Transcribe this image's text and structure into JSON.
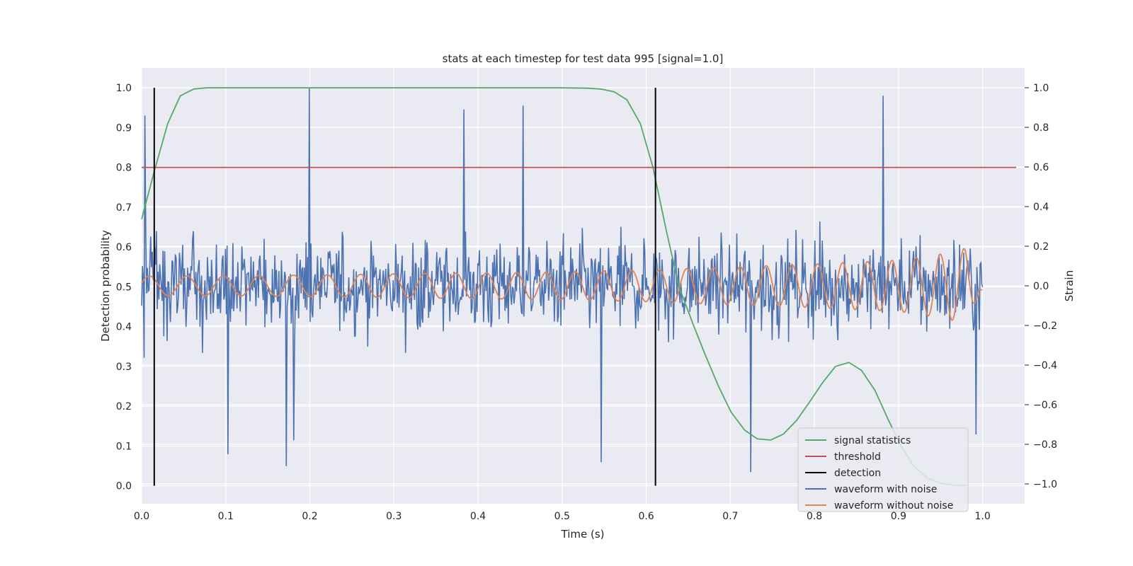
{
  "chart_data": {
    "type": "line",
    "title": "stats at each timestep for test data 995 [signal=1.0]",
    "xlabel": "Time (s)",
    "ylabel_left": "Detection probability",
    "ylabel_right": "Strain",
    "xlim": [
      0.0,
      1.05
    ],
    "ylim_left": [
      -0.045,
      1.05
    ],
    "ylim_right": [
      -1.1,
      1.1
    ],
    "x_ticks": [
      "0.0",
      "0.1",
      "0.2",
      "0.3",
      "0.4",
      "0.5",
      "0.6",
      "0.7",
      "0.8",
      "0.9",
      "1.0"
    ],
    "y_ticks_left": [
      "0.0",
      "0.1",
      "0.2",
      "0.3",
      "0.4",
      "0.5",
      "0.6",
      "0.7",
      "0.8",
      "0.9",
      "1.0"
    ],
    "y_ticks_right": [
      "−1.0",
      "−0.8",
      "−0.6",
      "−0.4",
      "−0.2",
      "0.0",
      "0.2",
      "0.4",
      "0.6",
      "0.8",
      "1.0"
    ],
    "grid": true,
    "legend_position": "lower-right",
    "colors": {
      "plot_background": "#eaeaf2",
      "grid": "#ffffff",
      "signal_statistics": "#55a868",
      "threshold": "#c44e52",
      "detection": "#000000",
      "waveform_with_noise": "#4c72b0",
      "waveform_without_noise": "#dd8452"
    },
    "series": [
      {
        "name": "signal statistics",
        "axis": "left",
        "x": [
          0.0,
          0.015,
          0.031,
          0.046,
          0.062,
          0.077,
          0.1,
          0.2,
          0.3,
          0.4,
          0.5,
          0.531,
          0.546,
          0.562,
          0.577,
          0.593,
          0.608,
          0.624,
          0.639,
          0.655,
          0.67,
          0.686,
          0.701,
          0.717,
          0.732,
          0.748,
          0.763,
          0.779,
          0.794,
          0.81,
          0.825,
          0.841,
          0.856,
          0.872,
          0.887,
          0.903,
          0.918,
          0.934,
          0.949,
          0.965,
          0.98
        ],
        "values": [
          0.67,
          0.79,
          0.91,
          0.98,
          0.997,
          1.0,
          1.0,
          1.0,
          1.0,
          1.0,
          1.0,
          0.999,
          0.997,
          0.99,
          0.97,
          0.91,
          0.8,
          0.64,
          0.5,
          0.41,
          0.33,
          0.25,
          0.185,
          0.14,
          0.118,
          0.115,
          0.13,
          0.165,
          0.21,
          0.26,
          0.3,
          0.31,
          0.29,
          0.24,
          0.17,
          0.1,
          0.05,
          0.02,
          0.007,
          0.002,
          0.001
        ]
      },
      {
        "name": "threshold",
        "axis": "left",
        "x": [
          0.0,
          1.04
        ],
        "values": [
          0.8,
          0.8
        ]
      },
      {
        "name": "detection",
        "axis": "left",
        "x": [
          0.015,
          0.611
        ],
        "values": [
          1.0,
          1.0
        ]
      },
      {
        "name": "waveform with noise",
        "axis": "right",
        "x_range": [
          0.0,
          1.0
        ],
        "samples": 1024,
        "peaks": [
          {
            "x": 0.004,
            "y": 0.86
          },
          {
            "x": 0.199,
            "y": 1.0
          },
          {
            "x": 0.383,
            "y": 0.89
          },
          {
            "x": 0.454,
            "y": 0.91
          },
          {
            "x": 0.546,
            "y": -0.89
          },
          {
            "x": 0.724,
            "y": -0.94
          },
          {
            "x": 0.882,
            "y": 0.96
          },
          {
            "x": 0.103,
            "y": -0.85
          },
          {
            "x": 0.172,
            "y": -0.91
          },
          {
            "x": 0.181,
            "y": -0.78
          },
          {
            "x": 0.992,
            "y": -0.75
          }
        ]
      },
      {
        "name": "waveform without noise",
        "axis": "right",
        "x": [
          0.0,
          0.1,
          0.2,
          0.3,
          0.4,
          0.5,
          0.6,
          0.7,
          0.8,
          0.9,
          0.95,
          0.98,
          1.0
        ],
        "amplitude": [
          0.05,
          0.05,
          0.055,
          0.06,
          0.065,
          0.07,
          0.08,
          0.095,
          0.11,
          0.13,
          0.16,
          0.19,
          0.0
        ],
        "cycles_per_second_start": 22,
        "cycles_per_second_end": 36
      }
    ]
  }
}
